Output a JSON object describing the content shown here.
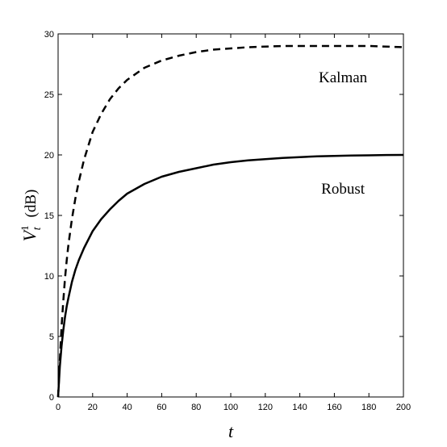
{
  "chart_data": {
    "type": "line",
    "xlabel": "t",
    "ylabel": {
      "symbol": "V",
      "subscript": "t",
      "superscript": "1",
      "unit": "(dB)"
    },
    "xlim": [
      0,
      200
    ],
    "ylim": [
      0,
      30
    ],
    "xticks": [
      "0",
      "20",
      "40",
      "60",
      "80",
      "100",
      "120",
      "140",
      "160",
      "180",
      "200"
    ],
    "yticks": [
      "0",
      "5",
      "10",
      "15",
      "20",
      "25",
      "30"
    ],
    "grid": false,
    "series": [
      {
        "name": "Kalman",
        "style": "dashed",
        "color": "#000000",
        "x": [
          0,
          1,
          2,
          3,
          4,
          5,
          6,
          8,
          10,
          12,
          15,
          20,
          25,
          30,
          35,
          40,
          50,
          60,
          70,
          80,
          90,
          100,
          110,
          120,
          130,
          140,
          150,
          160,
          170,
          180,
          190,
          200
        ],
        "y": [
          0,
          3.0,
          5.8,
          7.9,
          9.8,
          11.3,
          12.6,
          14.7,
          16.4,
          17.8,
          19.6,
          21.9,
          23.4,
          24.6,
          25.5,
          26.2,
          27.2,
          27.8,
          28.2,
          28.5,
          28.7,
          28.8,
          28.9,
          28.95,
          29.0,
          29.0,
          29.0,
          29.0,
          29.0,
          29.0,
          28.95,
          28.9
        ]
      },
      {
        "name": "Robust",
        "style": "solid",
        "color": "#000000",
        "x": [
          0,
          1,
          2,
          3,
          4,
          5,
          6,
          8,
          10,
          12,
          15,
          20,
          25,
          30,
          35,
          40,
          50,
          60,
          70,
          80,
          90,
          100,
          110,
          120,
          130,
          140,
          150,
          160,
          170,
          180,
          190,
          200
        ],
        "y": [
          0,
          2.5,
          4.2,
          5.5,
          6.6,
          7.5,
          8.2,
          9.5,
          10.5,
          11.3,
          12.3,
          13.7,
          14.7,
          15.5,
          16.2,
          16.8,
          17.6,
          18.2,
          18.6,
          18.9,
          19.2,
          19.4,
          19.55,
          19.65,
          19.75,
          19.82,
          19.88,
          19.92,
          19.95,
          19.97,
          19.99,
          20.0
        ]
      }
    ],
    "annotations": [
      {
        "text": "Kalman",
        "x": 165,
        "y": 26
      },
      {
        "text": "Robust",
        "x": 165,
        "y": 16.8
      }
    ]
  }
}
